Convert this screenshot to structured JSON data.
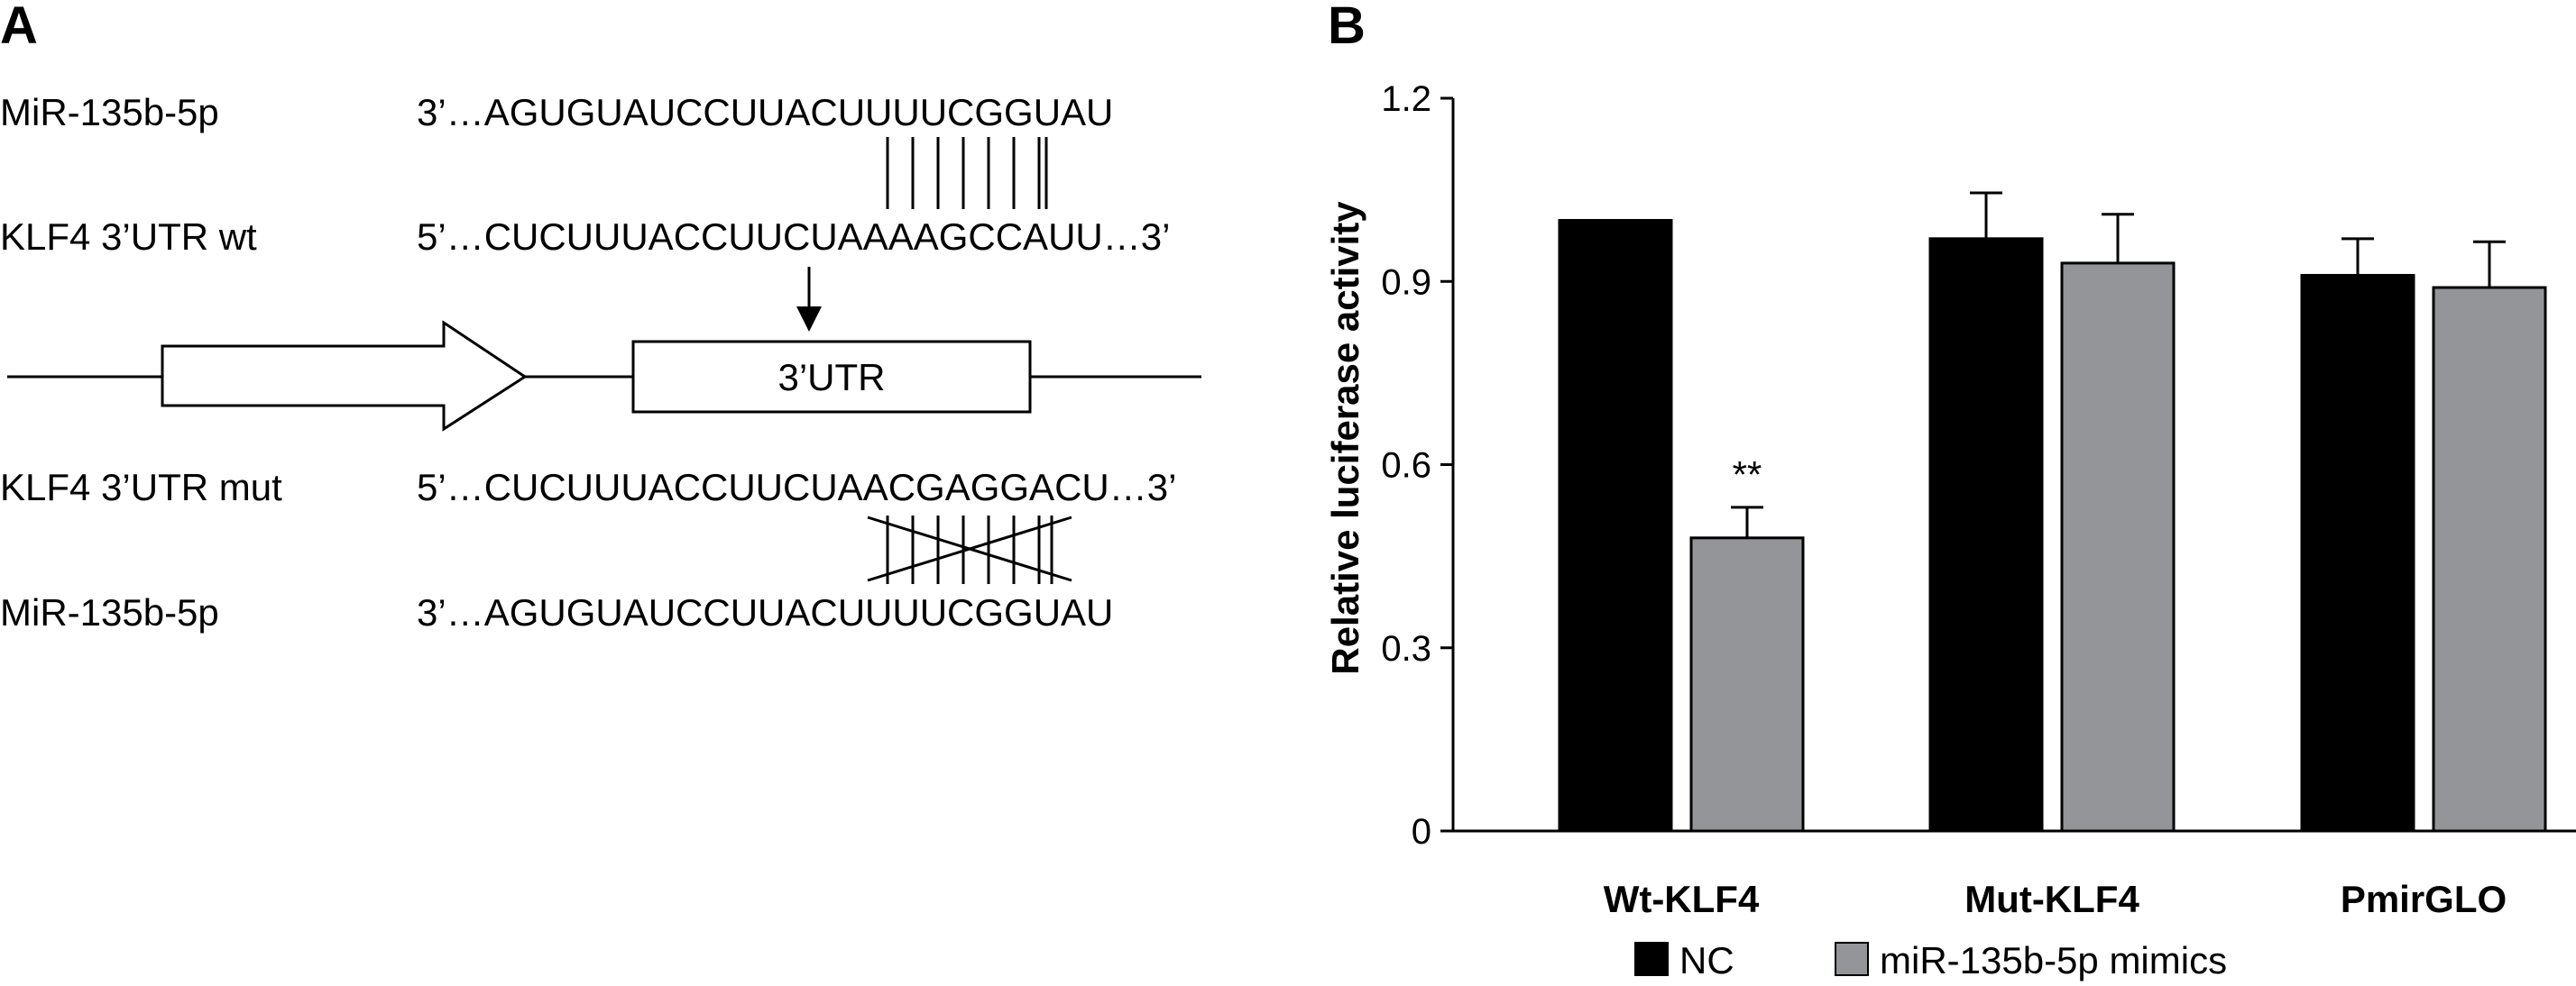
{
  "panel_a": {
    "label": "A",
    "rows": [
      {
        "name": "MiR-135b-5p",
        "sequence": "3’…AGUGUAUCCUUACUUUUCGGUAU"
      },
      {
        "name": "KLF4 3’UTR wt",
        "sequence": "5’…CUCUUUACCUUCUAAAAGCCAUU…3’"
      },
      {
        "name": "KLF4 3’UTR mut",
        "sequence": "5’…CUCUUUACCUUCUAACGAGGACU…3’"
      },
      {
        "name": "MiR-135b-5p",
        "sequence": "3’…AGUGUAUCCUUACUUUUCGGUAU"
      }
    ],
    "construct_box_label": "3’UTR"
  },
  "chart_data": {
    "type": "bar",
    "panel_label": "B",
    "categories": [
      "Wt-KLF4",
      "Mut-KLF4",
      "PmirGLO"
    ],
    "series": [
      {
        "name": "NC",
        "color": "#000000",
        "values": [
          1.0,
          0.97,
          0.91
        ],
        "errors": [
          0,
          0.075,
          0.06
        ]
      },
      {
        "name": "miR-135b-5p mimics",
        "color": "#939598",
        "values": [
          0.48,
          0.93,
          0.89
        ],
        "errors": [
          0.05,
          0.08,
          0.075
        ]
      }
    ],
    "significance": [
      {
        "category": "Wt-KLF4",
        "series": "miR-135b-5p mimics",
        "label": "**"
      }
    ],
    "ylabel": "Relative luciferase activity",
    "ylim": [
      0,
      1.2
    ],
    "yticks": [
      "0",
      "0.3",
      "0.6",
      "0.9",
      "1.2"
    ],
    "legend_placement": "bottom",
    "grid": false
  }
}
